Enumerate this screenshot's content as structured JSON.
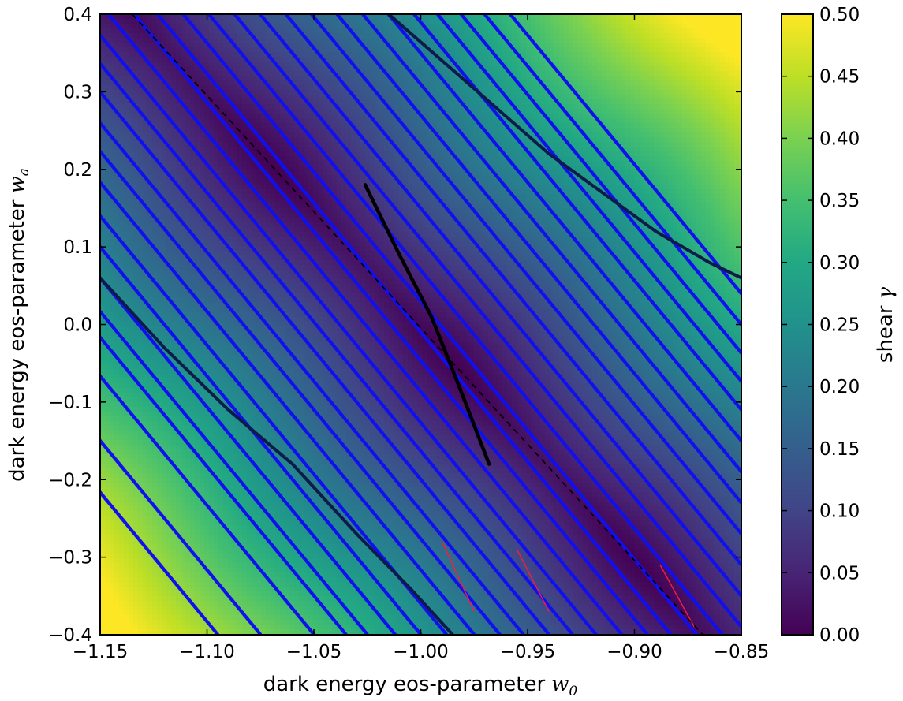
{
  "chart_data": {
    "type": "heatmap",
    "title": "",
    "xlabel": "dark energy eos-parameter",
    "xlabel_math": "w",
    "xlabel_sub": "0",
    "ylabel": "dark energy eos-parameter",
    "ylabel_math": "w",
    "ylabel_sub": "a",
    "colorbar_label": "shear",
    "colorbar_math": "γ",
    "xlim": [
      -1.15,
      -0.85
    ],
    "ylim": [
      -0.4,
      0.4
    ],
    "clim": [
      0.0,
      0.5
    ],
    "colormap": "viridis",
    "x_ticks": [
      {
        "value": -1.15,
        "label": "−1.15"
      },
      {
        "value": -1.1,
        "label": "−1.10"
      },
      {
        "value": -1.05,
        "label": "−1.05"
      },
      {
        "value": -1.0,
        "label": "−1.00"
      },
      {
        "value": -0.95,
        "label": "−0.95"
      },
      {
        "value": -0.9,
        "label": "−0.90"
      },
      {
        "value": -0.85,
        "label": "−0.85"
      }
    ],
    "y_ticks": [
      {
        "value": -0.4,
        "label": "−0.4"
      },
      {
        "value": -0.3,
        "label": "−0.3"
      },
      {
        "value": -0.2,
        "label": "−0.2"
      },
      {
        "value": -0.1,
        "label": "−0.1"
      },
      {
        "value": 0.0,
        "label": "0.0"
      },
      {
        "value": 0.1,
        "label": "0.1"
      },
      {
        "value": 0.2,
        "label": "0.2"
      },
      {
        "value": 0.3,
        "label": "0.3"
      },
      {
        "value": 0.4,
        "label": "0.4"
      }
    ],
    "colorbar_ticks": [
      {
        "value": 0.0,
        "label": "0.00"
      },
      {
        "value": 0.05,
        "label": "0.05"
      },
      {
        "value": 0.1,
        "label": "0.10"
      },
      {
        "value": 0.15,
        "label": "0.15"
      },
      {
        "value": 0.2,
        "label": "0.20"
      },
      {
        "value": 0.25,
        "label": "0.25"
      },
      {
        "value": 0.3,
        "label": "0.30"
      },
      {
        "value": 0.35,
        "label": "0.35"
      },
      {
        "value": 0.4,
        "label": "0.40"
      },
      {
        "value": 0.45,
        "label": "0.45"
      },
      {
        "value": 0.5,
        "label": "0.50"
      }
    ],
    "field": {
      "description_key": "shear field, minimum valley along dashed line",
      "valley_line": {
        "x": [
          -1.135,
          -0.868
        ],
        "y": [
          0.4,
          -0.4
        ]
      },
      "contour_slope": -3.33
    },
    "blue_contours": {
      "color": "#1010ee",
      "x_at_y0": [
        -1.215,
        -1.195,
        -1.17,
        -1.155,
        -1.145,
        -1.132,
        -1.12,
        -1.108,
        -1.095,
        -1.083,
        -1.072,
        -1.06,
        -1.049,
        -1.038,
        -1.026,
        -1.014,
        -1.003,
        -0.991,
        -0.979,
        -0.967,
        -0.955,
        -0.943,
        -0.931,
        -0.919,
        -0.907,
        -0.895,
        -0.883,
        -0.872,
        -0.861,
        -0.85,
        -0.838
      ]
    },
    "dark_lines": [
      {
        "name": "",
        "x": [
          -1.15,
          -1.12,
          -1.09,
          -1.06,
          -1.03,
          -1.005,
          -0.985
        ],
        "y": [
          0.06,
          -0.03,
          -0.11,
          -0.18,
          -0.27,
          -0.34,
          -0.4
        ]
      },
      {
        "name": "",
        "x": [
          -1.015,
          -0.99,
          -0.965,
          -0.94,
          -0.915,
          -0.89,
          -0.865,
          -0.85
        ],
        "y": [
          0.4,
          0.34,
          0.28,
          0.22,
          0.17,
          0.12,
          0.08,
          0.06
        ]
      }
    ],
    "black_segment": {
      "x": [
        -1.026,
        -1.01,
        -0.995,
        -0.982,
        -0.968
      ],
      "y": [
        0.18,
        0.09,
        0.01,
        -0.08,
        -0.18
      ]
    },
    "dashed_line": {
      "x": [
        -1.135,
        -0.868
      ],
      "y": [
        0.4,
        -0.4
      ]
    },
    "red_segments": [
      {
        "x": [
          -0.99,
          -0.975
        ],
        "y": [
          -0.28,
          -0.37
        ]
      },
      {
        "x": [
          -0.955,
          -0.94
        ],
        "y": [
          -0.29,
          -0.37
        ]
      },
      {
        "x": [
          -0.888,
          -0.872
        ],
        "y": [
          -0.31,
          -0.39
        ]
      }
    ]
  }
}
